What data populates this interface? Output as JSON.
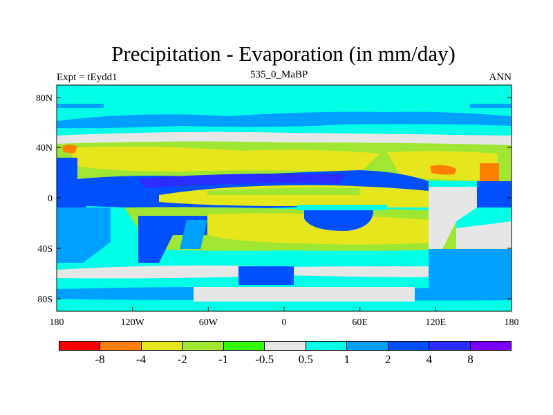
{
  "title": "Precipitation - Evaporation (in mm/day)",
  "subtitle_left": "Expt = tEydd1",
  "subtitle_center": "535_0_MaBP",
  "subtitle_right": "ANN",
  "y_ticks": [
    "80N",
    "40N",
    "0",
    "40S",
    "80S"
  ],
  "x_ticks": [
    "180",
    "120W",
    "60W",
    "0",
    "60E",
    "120E",
    "180"
  ],
  "colorbar": {
    "labels": [
      "-8",
      "-4",
      "-2",
      "-1",
      "-0.5",
      "0.5",
      "1",
      "2",
      "4",
      "8"
    ],
    "colors": [
      "#ff0000",
      "#ff8000",
      "#e6e61e",
      "#a0e632",
      "#32ff00",
      "#e6e6e6",
      "#00ffe6",
      "#00a0ff",
      "#0050ff",
      "#2c2cff",
      "#7a00ff"
    ]
  }
}
